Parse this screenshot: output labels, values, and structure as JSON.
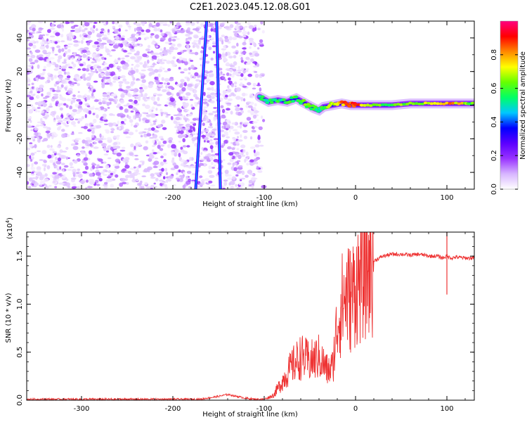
{
  "title": "C2E1.2023.045.12.08.G01",
  "chart_data": [
    {
      "type": "heatmap",
      "xlabel": "Height of straight line (km)",
      "ylabel": "Frequency (Hz)",
      "xlim": [
        -360,
        130
      ],
      "ylim": [
        -50,
        50
      ],
      "xticks": [
        -300,
        -200,
        -100,
        0,
        100
      ],
      "yticks": [
        -40,
        -20,
        0,
        20,
        40
      ],
      "colorbar": {
        "label": "Normalized spectral amplitude",
        "range": [
          0.0,
          1.0
        ],
        "ticks": [
          0.0,
          0.2,
          0.4,
          0.6,
          0.8
        ],
        "colors": [
          "#ffffff",
          "#d8b6ff",
          "#9933ff",
          "#5b00ff",
          "#0000ff",
          "#00c8ff",
          "#00ff66",
          "#66ff00",
          "#ffff00",
          "#ff8800",
          "#ff0000",
          "#ff0080"
        ]
      },
      "features": {
        "noise_region_x": [
          -360,
          -100
        ],
        "slanted_lines": [
          {
            "x1": -175,
            "y1": -50,
            "x2": -163,
            "y2": 50
          },
          {
            "x1": -148,
            "y1": -50,
            "x2": -152,
            "y2": 50
          }
        ],
        "carrier_track": {
          "x": [
            -105,
            -95,
            -85,
            -75,
            -65,
            -55,
            -45,
            -40,
            -35,
            -25,
            -15,
            -5,
            0,
            20,
            40,
            60,
            80,
            100,
            120,
            130
          ],
          "freq": [
            5,
            2,
            3,
            2,
            4,
            1,
            -2,
            -3,
            -1,
            0,
            1,
            0,
            0,
            0,
            0,
            1,
            1,
            1,
            1,
            1
          ],
          "amplitude": [
            0.5,
            0.5,
            0.55,
            0.55,
            0.6,
            0.6,
            0.55,
            0.5,
            0.6,
            0.7,
            0.8,
            0.85,
            0.9,
            0.6,
            0.6,
            0.65,
            0.7,
            0.8,
            0.7,
            0.6
          ]
        }
      }
    },
    {
      "type": "line",
      "xlabel": "Height of straight line (km)",
      "ylabel": "SNR (10 * v/v)",
      "yscale_label": "(x10",
      "yscale_exp": "4",
      "yscale_close": ")",
      "xlim": [
        -360,
        130
      ],
      "ylim": [
        0.0,
        1.75
      ],
      "xticks": [
        -300,
        -200,
        -100,
        0,
        100
      ],
      "yticks": [
        "0.0",
        "0.5",
        "1.0",
        "1.5"
      ],
      "color": "#ee3333",
      "x": [
        -360,
        -300,
        -250,
        -200,
        -170,
        -150,
        -140,
        -130,
        -120,
        -110,
        -100,
        -90,
        -80,
        -70,
        -60,
        -50,
        -40,
        -30,
        -25,
        -20,
        -15,
        -10,
        -5,
        0,
        5,
        10,
        20,
        30,
        40,
        50,
        60,
        70,
        80,
        90,
        95,
        100,
        105,
        110,
        120,
        130
      ],
      "y": [
        0.01,
        0.01,
        0.01,
        0.01,
        0.01,
        0.04,
        0.06,
        0.04,
        0.02,
        0.01,
        0.01,
        0.05,
        0.2,
        0.35,
        0.45,
        0.4,
        0.45,
        0.3,
        0.35,
        0.8,
        1.0,
        1.1,
        1.05,
        1.2,
        1.25,
        1.35,
        1.45,
        1.5,
        1.52,
        1.52,
        1.51,
        1.52,
        1.5,
        1.5,
        1.48,
        1.5,
        1.48,
        1.49,
        1.48,
        1.48
      ],
      "spike": {
        "x": 100,
        "top": 1.75,
        "bottom": 1.1
      }
    }
  ]
}
